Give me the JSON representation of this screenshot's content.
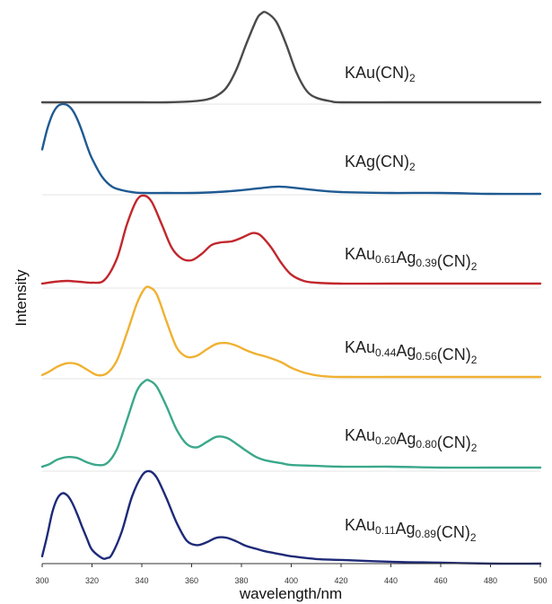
{
  "chart_data": {
    "type": "line",
    "title": "",
    "xlabel": "wavelength/nm",
    "ylabel": "Intensity",
    "xlim": [
      300,
      500
    ],
    "xticks": [
      300,
      320,
      340,
      360,
      380,
      400,
      420,
      440,
      460,
      480,
      500
    ],
    "y_scale": "stacked, arbitrary units (normalized to 1 per panel)",
    "grid": false,
    "legend": "none; each curve labelled at right",
    "series": [
      {
        "label": {
          "base": "KAu(CN)",
          "parts": [
            {
              "t": "KAu(CN)",
              "s": false
            },
            {
              "t": "2",
              "s": true
            }
          ]
        },
        "color": "#4a4a4a",
        "x": [
          300,
          310,
          320,
          330,
          340,
          350,
          360,
          366,
          370,
          374,
          378,
          382,
          386,
          388,
          390,
          394,
          398,
          402,
          406,
          410,
          416,
          420,
          440,
          460,
          480,
          500
        ],
        "y": [
          0.02,
          0.02,
          0.02,
          0.02,
          0.02,
          0.02,
          0.03,
          0.05,
          0.09,
          0.18,
          0.38,
          0.66,
          0.92,
          0.99,
          1.0,
          0.9,
          0.65,
          0.35,
          0.15,
          0.07,
          0.03,
          0.02,
          0.02,
          0.02,
          0.02,
          0.02
        ]
      },
      {
        "label": {
          "base": "KAg(CN)",
          "parts": [
            {
              "t": "KAg(CN)",
              "s": false
            },
            {
              "t": "2",
              "s": true
            }
          ]
        },
        "color": "#1f5a92",
        "x": [
          300,
          302,
          304,
          306,
          308,
          310,
          312,
          314,
          316,
          318,
          320,
          324,
          328,
          332,
          336,
          340,
          350,
          360,
          370,
          380,
          390,
          395,
          400,
          410,
          420,
          440,
          460,
          480,
          500
        ],
        "y": [
          0.5,
          0.72,
          0.88,
          0.97,
          1.0,
          0.99,
          0.94,
          0.84,
          0.7,
          0.54,
          0.4,
          0.2,
          0.09,
          0.05,
          0.03,
          0.02,
          0.02,
          0.02,
          0.03,
          0.05,
          0.08,
          0.09,
          0.08,
          0.05,
          0.03,
          0.02,
          0.02,
          0.01,
          0.01
        ]
      },
      {
        "label": {
          "base": "KAu0.61Ag0.39(CN)2",
          "parts": [
            {
              "t": "KAu",
              "s": false
            },
            {
              "t": "0.61",
              "s": true
            },
            {
              "t": "Ag",
              "s": false
            },
            {
              "t": "0.39",
              "s": true
            },
            {
              "t": "(CN)",
              "s": false
            },
            {
              "t": "2",
              "s": true
            }
          ]
        },
        "color": "#c1272d",
        "x": [
          300,
          305,
          310,
          315,
          320,
          325,
          330,
          334,
          338,
          341,
          344,
          348,
          352,
          356,
          360,
          364,
          368,
          372,
          376,
          380,
          384,
          386,
          388,
          392,
          396,
          400,
          405,
          410,
          420,
          440,
          460,
          480,
          500
        ],
        "y": [
          0.02,
          0.04,
          0.05,
          0.04,
          0.03,
          0.06,
          0.3,
          0.68,
          0.95,
          1.0,
          0.93,
          0.68,
          0.42,
          0.3,
          0.28,
          0.35,
          0.45,
          0.48,
          0.49,
          0.53,
          0.58,
          0.58,
          0.55,
          0.42,
          0.25,
          0.12,
          0.05,
          0.03,
          0.02,
          0.02,
          0.02,
          0.02,
          0.02
        ]
      },
      {
        "label": {
          "base": "KAu0.44Ag0.56(CN)2",
          "parts": [
            {
              "t": "KAu",
              "s": false
            },
            {
              "t": "0.44",
              "s": true
            },
            {
              "t": "Ag",
              "s": false
            },
            {
              "t": "0.56",
              "s": true
            },
            {
              "t": "(CN)",
              "s": false
            },
            {
              "t": "2",
              "s": true
            }
          ]
        },
        "color": "#f0b132",
        "x": [
          300,
          303,
          306,
          310,
          314,
          318,
          322,
          326,
          330,
          334,
          338,
          341,
          343,
          346,
          350,
          354,
          358,
          362,
          366,
          370,
          374,
          378,
          382,
          386,
          390,
          396,
          400,
          406,
          412,
          420,
          440,
          460,
          480,
          500
        ],
        "y": [
          0.04,
          0.08,
          0.13,
          0.17,
          0.16,
          0.1,
          0.04,
          0.06,
          0.2,
          0.5,
          0.82,
          0.98,
          1.0,
          0.92,
          0.62,
          0.34,
          0.24,
          0.25,
          0.32,
          0.38,
          0.39,
          0.36,
          0.31,
          0.27,
          0.24,
          0.18,
          0.12,
          0.06,
          0.03,
          0.02,
          0.02,
          0.02,
          0.02,
          0.02
        ]
      },
      {
        "label": {
          "base": "KAu0.20Ag0.80(CN)2",
          "parts": [
            {
              "t": "KAu",
              "s": false
            },
            {
              "t": "0.20",
              "s": true
            },
            {
              "t": "Ag",
              "s": false
            },
            {
              "t": "0.80",
              "s": true
            },
            {
              "t": "(CN)",
              "s": false
            },
            {
              "t": "2",
              "s": true
            }
          ]
        },
        "color": "#3aa88a",
        "x": [
          300,
          303,
          306,
          310,
          314,
          318,
          322,
          326,
          330,
          334,
          338,
          341,
          343,
          346,
          350,
          354,
          358,
          362,
          366,
          370,
          374,
          378,
          382,
          386,
          390,
          396,
          400,
          410,
          420,
          440,
          460,
          480,
          500
        ],
        "y": [
          0.02,
          0.05,
          0.1,
          0.13,
          0.12,
          0.07,
          0.04,
          0.06,
          0.22,
          0.55,
          0.88,
          0.99,
          1.0,
          0.93,
          0.7,
          0.44,
          0.28,
          0.24,
          0.3,
          0.36,
          0.35,
          0.28,
          0.2,
          0.13,
          0.09,
          0.06,
          0.04,
          0.03,
          0.02,
          0.02,
          0.01,
          0.01,
          0.01
        ]
      },
      {
        "label": {
          "base": "KAu0.11Ag0.89(CN)2",
          "parts": [
            {
              "t": "KAu",
              "s": false
            },
            {
              "t": "0.11",
              "s": true
            },
            {
              "t": "Ag",
              "s": false
            },
            {
              "t": "0.89",
              "s": true
            },
            {
              "t": "(CN)",
              "s": false
            },
            {
              "t": "2",
              "s": true
            }
          ]
        },
        "color": "#1e2a78",
        "x": [
          300,
          302,
          304,
          306,
          308,
          310,
          312,
          314,
          316,
          318,
          320,
          324,
          326,
          328,
          332,
          336,
          340,
          343,
          346,
          350,
          354,
          358,
          362,
          366,
          370,
          374,
          378,
          382,
          386,
          390,
          396,
          400,
          410,
          420,
          440,
          460,
          480,
          500
        ],
        "y": [
          0.08,
          0.3,
          0.55,
          0.7,
          0.76,
          0.74,
          0.66,
          0.54,
          0.4,
          0.27,
          0.15,
          0.06,
          0.06,
          0.1,
          0.35,
          0.72,
          0.95,
          1.0,
          0.93,
          0.7,
          0.44,
          0.25,
          0.2,
          0.23,
          0.28,
          0.28,
          0.24,
          0.19,
          0.16,
          0.13,
          0.1,
          0.08,
          0.05,
          0.04,
          0.02,
          0.01,
          0.0,
          0.0
        ]
      }
    ]
  }
}
